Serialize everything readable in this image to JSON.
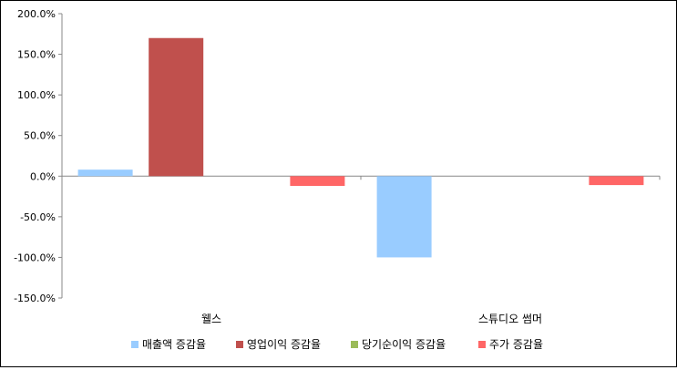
{
  "chart_data": {
    "type": "bar",
    "categories": [
      "웰스",
      "스튜디오 썸머"
    ],
    "series": [
      {
        "name": "매출액 증감율",
        "color": "#99ccff",
        "values": [
          8.0,
          -100.0
        ]
      },
      {
        "name": "영업이익 증감율",
        "color": "#c0504d",
        "values": [
          170.0,
          0.0
        ]
      },
      {
        "name": "당기순이익 증감율",
        "color": "#9bbb59",
        "values": [
          0.0,
          0.0
        ]
      },
      {
        "name": "주가 증감율",
        "color": "#ff6666",
        "values": [
          -12.0,
          -11.0
        ]
      }
    ],
    "ylim": [
      -150,
      200
    ],
    "ytick_step": 50,
    "yticks": [
      "200.0%",
      "150.0%",
      "100.0%",
      "50.0%",
      "0.0%",
      "-50.0%",
      "-100.0%",
      "-150.0%"
    ],
    "grid": false,
    "legend_position": "bottom",
    "title": "",
    "xlabel": "",
    "ylabel": ""
  }
}
